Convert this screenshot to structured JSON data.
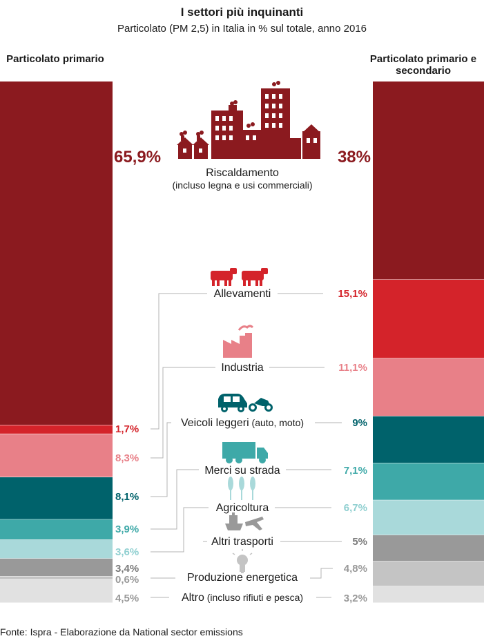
{
  "title": "I settori più inquinanti",
  "subtitle": "Particolato (PM 2,5) in Italia in % sul totale, anno 2016",
  "footer": "Fonte: Ispra - Elaborazione da National sector emissions",
  "chart_data": {
    "type": "bar",
    "stacked": true,
    "title": "I settori più inquinanti",
    "subtitle": "Particolato (PM 2,5) in Italia in % sul totale, anno 2016",
    "columns": [
      "Particolato primario",
      "Particolato primario e secondario"
    ],
    "categories": [
      {
        "name": "Riscaldamento",
        "note": "(incluso legna e usi commerciali)",
        "color": "#8b1a1f",
        "icon": "buildings-icon"
      },
      {
        "name": "Allevamenti",
        "note": "",
        "color": "#d4232a",
        "icon": "cows-icon"
      },
      {
        "name": "Industria",
        "note": "",
        "color": "#e88088",
        "icon": "factory-icon"
      },
      {
        "name": "Veicoli leggeri",
        "note": "(auto, moto)",
        "color": "#00626b",
        "icon": "car-motorbike-icon"
      },
      {
        "name": "Merci su strada",
        "note": "",
        "color": "#3ea9a8",
        "icon": "truck-icon"
      },
      {
        "name": "Agricoltura",
        "note": "",
        "color": "#a9d9da",
        "icon": "wheat-icon"
      },
      {
        "name": "Altri trasporti",
        "note": "",
        "color": "#999999",
        "icon": "ship-plane-icon"
      },
      {
        "name": "Produzione energetica",
        "note": "",
        "color": "#c4c4c4",
        "icon": "lightbulb-icon"
      },
      {
        "name": "Altro",
        "note": "(incluso rifiuti e pesca)",
        "color": "#e1e1e1",
        "icon": ""
      }
    ],
    "series": [
      {
        "name": "Particolato primario",
        "values": [
          65.9,
          1.7,
          8.3,
          8.1,
          3.9,
          3.6,
          3.4,
          0.6,
          4.5
        ],
        "labels": [
          "65,9%",
          "1,7%",
          "8,3%",
          "8,1%",
          "3,9%",
          "3,6%",
          "3,4%",
          "0,6%",
          "4,5%"
        ]
      },
      {
        "name": "Particolato primario e secondario",
        "values": [
          38,
          15.1,
          11.1,
          9,
          7.1,
          6.7,
          5,
          4.8,
          3.2
        ],
        "labels": [
          "38%",
          "15,1%",
          "11,1%",
          "9%",
          "7,1%",
          "6,7%",
          "5%",
          "4,8%",
          "3,2%"
        ]
      }
    ],
    "label_colors": [
      "#8b1a1f",
      "#d4232a",
      "#e88088",
      "#00626b",
      "#3ea9a8",
      "#8fcfd0",
      "#7a7a7a",
      "#999999",
      "#999999"
    ]
  }
}
